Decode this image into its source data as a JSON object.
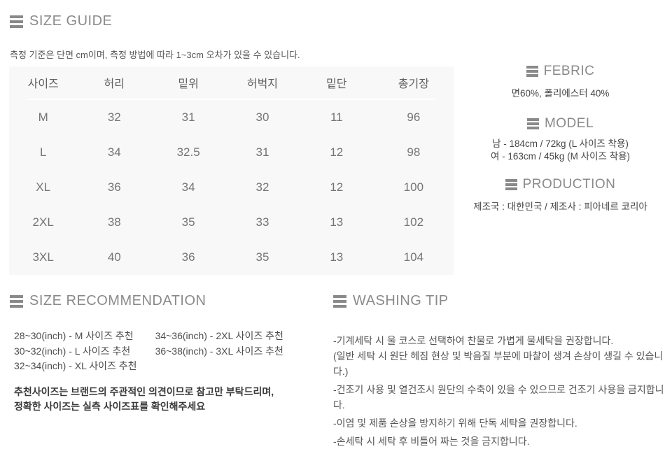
{
  "size_guide": {
    "title": "SIZE GUIDE",
    "note": "측정 기준은 단면 cm이며, 측정 방법에 따라 1~3cm 오차가 있을 수 있습니다."
  },
  "size_table": {
    "columns": [
      "사이즈",
      "허리",
      "밑위",
      "허벅지",
      "밑단",
      "총기장"
    ],
    "rows": [
      [
        "M",
        "32",
        "31",
        "30",
        "11",
        "96"
      ],
      [
        "L",
        "34",
        "32.5",
        "31",
        "12",
        "98"
      ],
      [
        "XL",
        "36",
        "34",
        "32",
        "12",
        "100"
      ],
      [
        "2XL",
        "38",
        "35",
        "33",
        "13",
        "102"
      ],
      [
        "3XL",
        "40",
        "36",
        "35",
        "13",
        "104"
      ]
    ]
  },
  "fabric": {
    "title": "FEBRIC",
    "text": "면60%, 폴리에스터 40%"
  },
  "model": {
    "title": "MODEL",
    "lines": [
      "남 - 184cm / 72kg (L 사이즈 착용)",
      "여 - 163cm / 45kg (M 사이즈 착용)"
    ]
  },
  "production": {
    "title": "PRODUCTION",
    "text": "제조국 : 대한민국 / 제조사 : 피아네르 코리아"
  },
  "size_recommendation": {
    "title": "SIZE RECOMMENDATION",
    "column1": [
      "28~30(inch) - M 사이즈 추천",
      "30~32(inch) - L 사이즈 추천",
      "32~34(inch) - XL 사이즈 추천"
    ],
    "column2": [
      "34~36(inch) - 2XL 사이즈 추천",
      "36~38(inch) - 3XL 사이즈 추천"
    ],
    "note_line1": "추천사이즈는 브랜드의 주관적인 의견이므로 참고만 부탁드리며,",
    "note_line2": "정확한 사이즈는 실측 사이즈표를 확인해주세요"
  },
  "washing_tip": {
    "title": "WASHING TIP",
    "lines": [
      "-기계세탁 시 울 코스로 선택하여 찬물로 가볍게 물세탁을 권장합니다.",
      "(일반 세탁 시 원단 헤짐 현상 및 박음질 부분에 마찰이 생겨 손상이 생길 수 있습니다.)",
      "-건조기 사용 및 열건조시 원단의 수축이 있을 수 있으므로 건조기 사용을 금지합니다.",
      "-이염 및 제품 손상을 방지하기 위해 단독 세탁을 권장합니다.",
      "-손세탁 시 세탁 후 비틀어 짜는 것을 금지합니다."
    ]
  },
  "colors": {
    "heading_gray": "#8a8a8a",
    "body_text": "#555555",
    "table_background": "#f8f8f8",
    "table_text": "#757575"
  }
}
